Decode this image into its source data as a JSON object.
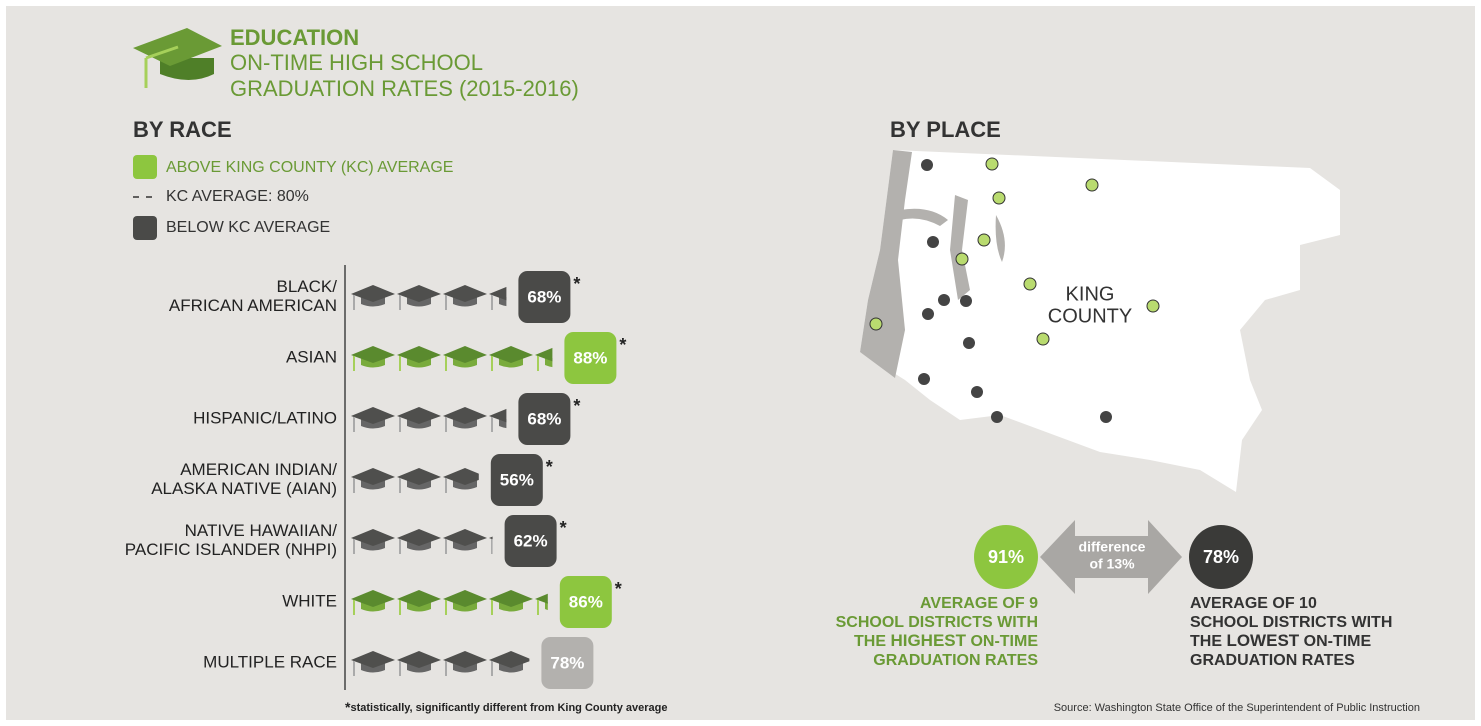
{
  "header": {
    "kicker": "EDUCATION",
    "title_lines": [
      "ON-TIME HIGH SCHOOL",
      "GRADUATION RATES (2015-2016)"
    ]
  },
  "chart_data": {
    "type": "pictogram",
    "title": "BY RACE",
    "categories": [
      [
        "BLACK/",
        "AFRICAN AMERICAN"
      ],
      [
        "ASIAN"
      ],
      [
        "HISPANIC/LATINO"
      ],
      [
        "AMERICAN INDIAN/",
        "ALASKA NATIVE (AIAN)"
      ],
      [
        "NATIVE HAWAIIAN/",
        "PACIFIC ISLANDER (NHPI)"
      ],
      [
        "WHITE"
      ],
      [
        "MULTIPLE RACE"
      ]
    ],
    "values": [
      68,
      88,
      68,
      56,
      62,
      86,
      78
    ],
    "value_labels": [
      "68%",
      "88%",
      "68%",
      "56%",
      "62%",
      "86%",
      "78%"
    ],
    "significant": [
      true,
      true,
      true,
      true,
      true,
      true,
      false
    ],
    "significance_marker": "*",
    "unit": 20,
    "average": 80,
    "above_color": "#8dc63f",
    "below_color": "#4a4a48",
    "neutral_color": "#b3b1ae",
    "legend": {
      "above": "ABOVE KING COUNTY (KC) AVERAGE",
      "average": "KC AVERAGE: 80%",
      "below": "BELOW KC AVERAGE"
    },
    "footnote_marker": "*",
    "footnote": "statistically, significantly different from King County average"
  },
  "place": {
    "title": "BY PLACE",
    "map_label": [
      "KING",
      "COUNTY"
    ],
    "high": {
      "value_label": "91%",
      "lines": [
        [
          "AVERAGE OF 9"
        ],
        [
          "SCHOOL DISTRICTS WITH"
        ],
        [
          "THE ",
          "HIGHEST",
          " ON-TIME"
        ],
        [
          "GRADUATION RATES"
        ]
      ],
      "emphasis": [
        2,
        1
      ]
    },
    "difference": [
      "difference",
      "of 13%"
    ],
    "low": {
      "value_label": "78%",
      "lines": [
        [
          "AVERAGE OF 10"
        ],
        [
          "SCHOOL DISTRICTS WITH"
        ],
        [
          "THE ",
          "LOWEST",
          " ON-TIME"
        ],
        [
          "GRADUATION RATES"
        ]
      ],
      "emphasis": [
        2,
        1
      ]
    }
  },
  "source": "Source: Washington State Office of the Superintendent of Public Instruction"
}
